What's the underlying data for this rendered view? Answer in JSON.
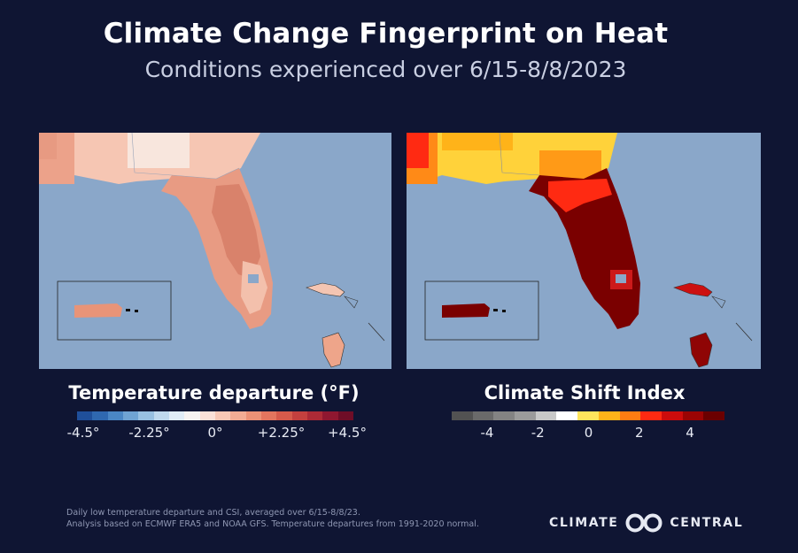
{
  "title": "Climate Change Fingerprint on Heat",
  "subtitle": "Conditions experienced over 6/15-8/8/2023",
  "legend_left": {
    "title": "Temperature departure (°F)",
    "ticks": [
      "-4.5°",
      "-2.25°",
      "0°",
      "+2.25°",
      "+4.5°"
    ],
    "colors": [
      "#1f4f9a",
      "#2f68b0",
      "#4a86c4",
      "#6fa3d3",
      "#98c0e2",
      "#bfd8ee",
      "#e0ecf7",
      "#f6f2f1",
      "#fae0d8",
      "#f7c7b6",
      "#f2ac94",
      "#eb9176",
      "#e3755e",
      "#d65a4b",
      "#c4403e",
      "#ac2a36",
      "#8f1730",
      "#6f0d27"
    ]
  },
  "legend_right": {
    "title": "Climate Shift Index",
    "ticks": [
      "-4",
      "-2",
      "0",
      "2",
      "4"
    ],
    "colors": [
      "#525252",
      "#6a6a6a",
      "#838383",
      "#9b9b9b",
      "#c8c8c8",
      "#ffffff",
      "#ffe45c",
      "#ffb319",
      "#ff7c12",
      "#ff2a12",
      "#cc0c0c",
      "#9b0404",
      "#6b0000"
    ]
  },
  "footnote": [
    "Daily low temperature departure and CSI, averaged over 6/15-8/8/23.",
    "Analysis based on ECMWF ERA5 and NOAA GFS. Temperature departures from 1991-2020 normal."
  ],
  "brand": {
    "left": "CLIMATE",
    "right": "CENTRAL"
  }
}
